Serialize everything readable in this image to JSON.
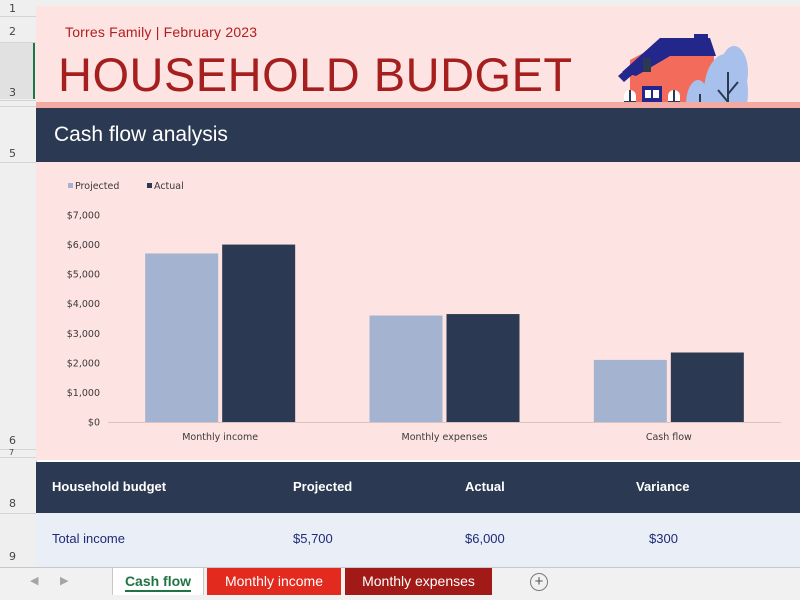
{
  "row_headers": [
    "1",
    "2",
    "3",
    "5",
    "6",
    "7",
    "8",
    "9"
  ],
  "banner": {
    "subtitle": "Torres Family | February 2023",
    "title": "HOUSEHOLD BUDGET"
  },
  "section": {
    "title": "Cash flow analysis"
  },
  "chart_data": {
    "type": "bar",
    "categories": [
      "Monthly income",
      "Monthly expenses",
      "Cash flow"
    ],
    "series": [
      {
        "name": "Projected",
        "values": [
          5700,
          3600,
          2100
        ],
        "color": "#a4b4d0"
      },
      {
        "name": "Actual",
        "values": [
          6000,
          3650,
          2350
        ],
        "color": "#2b3a52"
      }
    ],
    "ylim": [
      0,
      7000
    ],
    "y_ticks": [
      "$0",
      "$1,000",
      "$2,000",
      "$3,000",
      "$4,000",
      "$5,000",
      "$6,000",
      "$7,000"
    ],
    "legend": "top-left",
    "grid": false
  },
  "table": {
    "headers": [
      "Household budget",
      "Projected",
      "Actual",
      "Variance"
    ],
    "rows": [
      {
        "label": "Total income",
        "projected": "$5,700",
        "actual": "$6,000",
        "variance": "$300"
      }
    ]
  },
  "tabs": [
    {
      "label": "Cash flow",
      "active": true
    },
    {
      "label": "Monthly income",
      "active": false
    },
    {
      "label": "Monthly expenses",
      "active": false
    }
  ],
  "colors": {
    "banner_bg": "#fde3e1",
    "title_red": "#a51f1f",
    "navy": "#2b3a52",
    "tab_red": "#e22a1f",
    "tab_dark_red": "#a11a17",
    "excel_green": "#217346"
  },
  "icons": {
    "house": "house-illustration",
    "add_sheet": "plus-circle-icon"
  }
}
